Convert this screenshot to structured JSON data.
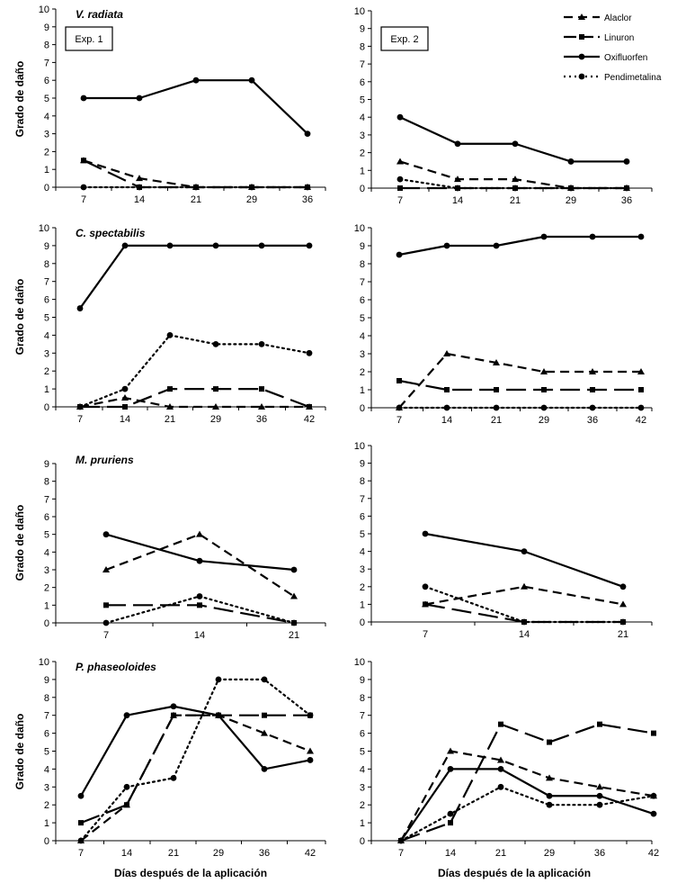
{
  "figure": {
    "legend": [
      {
        "name": "Alaclor",
        "style": "dash",
        "marker": "triangle"
      },
      {
        "name": "Linuron",
        "style": "longdash",
        "marker": "square"
      },
      {
        "name": "Oxifluorfen",
        "style": "solid",
        "marker": "circle"
      },
      {
        "name": "Pendimetalina",
        "style": "dot",
        "marker": "circle"
      }
    ],
    "ylabel": "Grado de daño",
    "xlabel": "Días después de la aplicación",
    "exp_labels": [
      "Exp. 1",
      "Exp. 2"
    ]
  },
  "chart_data": [
    {
      "type": "line",
      "title": "V. radiata",
      "exp": "Exp. 1",
      "categories": [
        "7",
        "14",
        "21",
        "29",
        "36"
      ],
      "ylim": [
        0,
        10
      ],
      "series": [
        {
          "name": "Alaclor",
          "values": [
            1.5,
            0.5,
            0,
            0,
            0
          ]
        },
        {
          "name": "Linuron",
          "values": [
            1.5,
            0,
            0,
            0,
            0
          ]
        },
        {
          "name": "Oxifluorfen",
          "values": [
            5,
            5,
            6,
            6,
            3
          ]
        },
        {
          "name": "Pendimetalina",
          "values": [
            0,
            0,
            0,
            0,
            0
          ]
        }
      ]
    },
    {
      "type": "line",
      "title": "",
      "exp": "Exp. 2",
      "categories": [
        "7",
        "14",
        "21",
        "29",
        "36"
      ],
      "ylim": [
        0,
        10
      ],
      "series": [
        {
          "name": "Alaclor",
          "values": [
            1.5,
            0.5,
            0.5,
            0,
            0
          ]
        },
        {
          "name": "Linuron",
          "values": [
            0,
            0,
            0,
            0,
            0
          ]
        },
        {
          "name": "Oxifluorfen",
          "values": [
            4,
            2.5,
            2.5,
            1.5,
            1.5
          ]
        },
        {
          "name": "Pendimetalina",
          "values": [
            0.5,
            0,
            0,
            0,
            0
          ]
        }
      ]
    },
    {
      "type": "line",
      "title": "C. spectabilis",
      "exp": "",
      "categories": [
        "7",
        "14",
        "21",
        "29",
        "36",
        "42"
      ],
      "ylim": [
        0,
        10
      ],
      "series": [
        {
          "name": "Alaclor",
          "values": [
            0,
            0.5,
            0,
            0,
            0,
            0
          ]
        },
        {
          "name": "Linuron",
          "values": [
            0,
            0,
            1,
            1,
            1,
            0
          ]
        },
        {
          "name": "Oxifluorfen",
          "values": [
            5.5,
            9,
            9,
            9,
            9,
            9
          ]
        },
        {
          "name": "Pendimetalina",
          "values": [
            0,
            1,
            4,
            3.5,
            3.5,
            3
          ]
        }
      ]
    },
    {
      "type": "line",
      "title": "",
      "exp": "",
      "categories": [
        "7",
        "14",
        "21",
        "29",
        "36",
        "42"
      ],
      "ylim": [
        0,
        10
      ],
      "series": [
        {
          "name": "Alaclor",
          "values": [
            0,
            3,
            2.5,
            2,
            2,
            2
          ]
        },
        {
          "name": "Linuron",
          "values": [
            1.5,
            1,
            1,
            1,
            1,
            1
          ]
        },
        {
          "name": "Oxifluorfen",
          "values": [
            8.5,
            9,
            9,
            9.5,
            9.5,
            9.5
          ]
        },
        {
          "name": "Pendimetalina",
          "values": [
            0,
            0,
            0,
            0,
            0,
            0
          ]
        }
      ]
    },
    {
      "type": "line",
      "title": "M. pruriens",
      "exp": "",
      "categories": [
        "7",
        "14",
        "21"
      ],
      "ylim": [
        0,
        9
      ],
      "series": [
        {
          "name": "Alaclor",
          "values": [
            3,
            5,
            1.5
          ]
        },
        {
          "name": "Linuron",
          "values": [
            1,
            1,
            0
          ]
        },
        {
          "name": "Oxifluorfen",
          "values": [
            5,
            3.5,
            3
          ]
        },
        {
          "name": "Pendimetalina",
          "values": [
            0,
            1.5,
            0
          ]
        }
      ]
    },
    {
      "type": "line",
      "title": "",
      "exp": "",
      "categories": [
        "7",
        "14",
        "21"
      ],
      "ylim": [
        0,
        10
      ],
      "series": [
        {
          "name": "Alaclor",
          "values": [
            1,
            2,
            1
          ]
        },
        {
          "name": "Linuron",
          "values": [
            1,
            0,
            0
          ]
        },
        {
          "name": "Oxifluorfen",
          "values": [
            5,
            4,
            2
          ]
        },
        {
          "name": "Pendimetalina",
          "values": [
            2,
            0,
            0
          ]
        }
      ]
    },
    {
      "type": "line",
      "title": "P. phaseoloides",
      "exp": "",
      "categories": [
        "7",
        "14",
        "21",
        "29",
        "36",
        "42"
      ],
      "ylim": [
        0,
        10
      ],
      "series": [
        {
          "name": "Alaclor",
          "values": [
            0,
            2,
            7,
            7,
            6,
            5
          ]
        },
        {
          "name": "Linuron",
          "values": [
            1,
            2,
            7,
            7,
            7,
            7
          ]
        },
        {
          "name": "Oxifluorfen",
          "values": [
            2.5,
            7,
            7.5,
            7,
            4,
            4.5
          ]
        },
        {
          "name": "Pendimetalina",
          "values": [
            0,
            3,
            3.5,
            9,
            9,
            7
          ]
        }
      ]
    },
    {
      "type": "line",
      "title": "",
      "exp": "",
      "categories": [
        "7",
        "14",
        "21",
        "29",
        "36",
        "42"
      ],
      "ylim": [
        0,
        10
      ],
      "series": [
        {
          "name": "Alaclor",
          "values": [
            0,
            5,
            4.5,
            3.5,
            3,
            2.5
          ]
        },
        {
          "name": "Linuron",
          "values": [
            0,
            1,
            6.5,
            5.5,
            6.5,
            6
          ]
        },
        {
          "name": "Oxifluorfen",
          "values": [
            0,
            4,
            4,
            2.5,
            2.5,
            1.5
          ]
        },
        {
          "name": "Pendimetalina",
          "values": [
            0,
            1.5,
            3,
            2,
            2,
            2.5
          ]
        }
      ]
    }
  ]
}
